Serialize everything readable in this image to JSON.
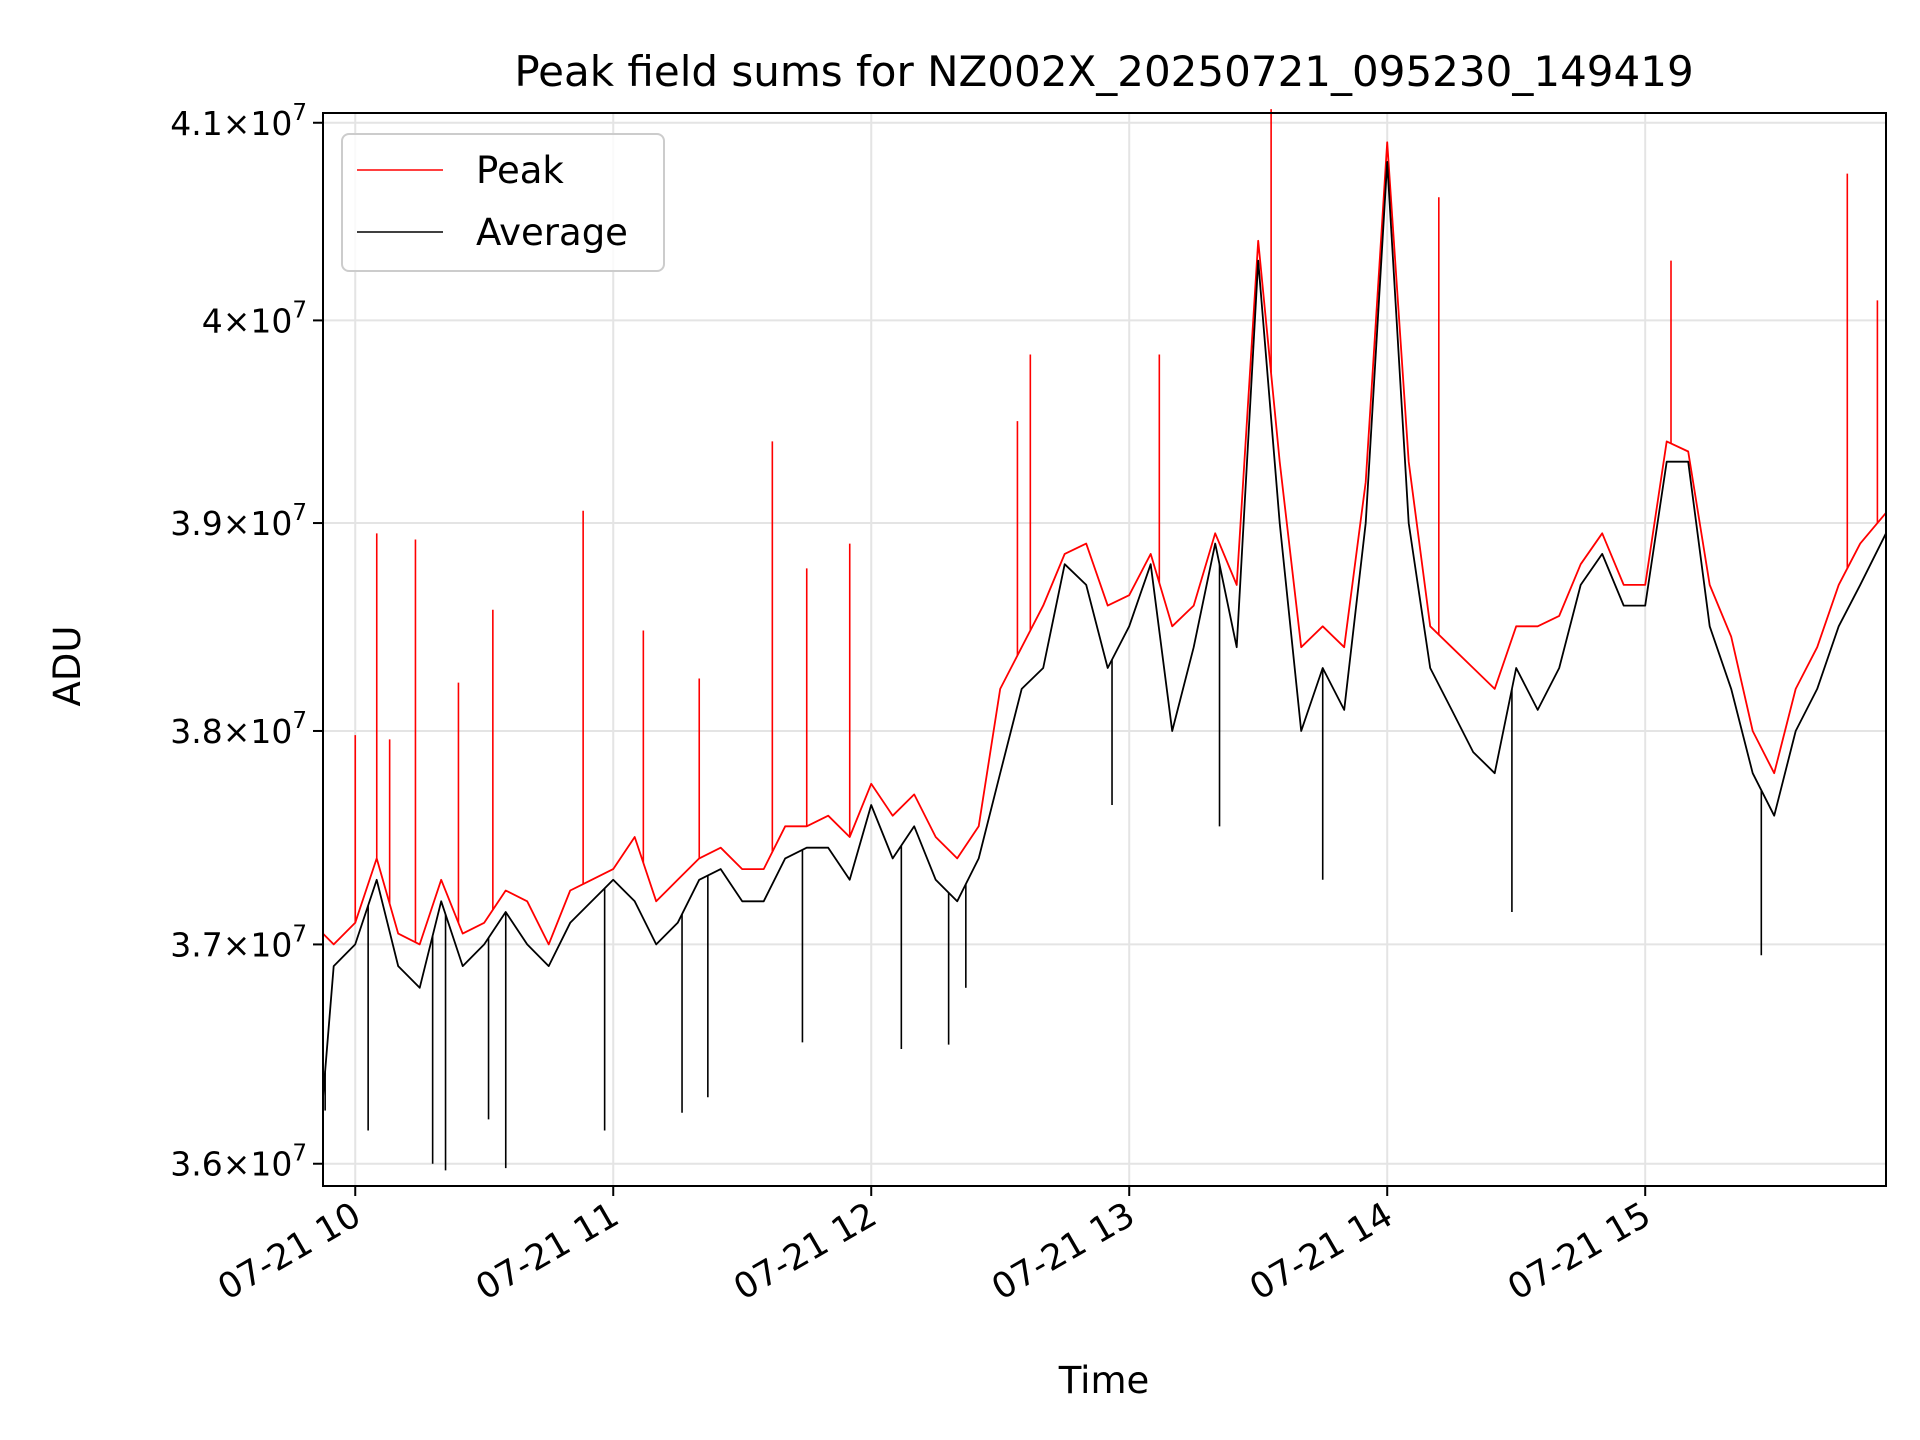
{
  "chart_data": {
    "type": "line",
    "title": "Peak field sums for NZ002X_20250721_095230_149419",
    "xlabel": "Time",
    "ylabel": "ADU",
    "y_scale": "log",
    "xlim": [
      "2025-07-21T09:52:30",
      "2025-07-21T15:56:00"
    ],
    "ylim": [
      35900000,
      41050000
    ],
    "grid": true,
    "legend_position": "top-left",
    "x_ticks": [
      {
        "value": "2025-07-21T10:00:00",
        "label": "07-21 10"
      },
      {
        "value": "2025-07-21T11:00:00",
        "label": "07-21 11"
      },
      {
        "value": "2025-07-21T12:00:00",
        "label": "07-21 12"
      },
      {
        "value": "2025-07-21T13:00:00",
        "label": "07-21 13"
      },
      {
        "value": "2025-07-21T14:00:00",
        "label": "07-21 14"
      },
      {
        "value": "2025-07-21T15:00:00",
        "label": "07-21 15"
      }
    ],
    "y_ticks": [
      {
        "value": 36000000,
        "mantissa": "3.6",
        "exponent": "7"
      },
      {
        "value": 37000000,
        "mantissa": "3.7",
        "exponent": "7"
      },
      {
        "value": 38000000,
        "mantissa": "3.8",
        "exponent": "7"
      },
      {
        "value": 39000000,
        "mantissa": "3.9",
        "exponent": "7"
      },
      {
        "value": 40000000,
        "mantissa": "4",
        "exponent": "7"
      },
      {
        "value": 41000000,
        "mantissa": "4.1",
        "exponent": "7"
      }
    ],
    "times_x_label": "×10",
    "series": [
      {
        "name": "Peak",
        "color": "#ff0000",
        "x": [
          "2025-07-21T09:52:30",
          "2025-07-21T09:55:00",
          "2025-07-21T10:00:00",
          "2025-07-21T10:05:00",
          "2025-07-21T10:10:00",
          "2025-07-21T10:15:00",
          "2025-07-21T10:20:00",
          "2025-07-21T10:25:00",
          "2025-07-21T10:30:00",
          "2025-07-21T10:35:00",
          "2025-07-21T10:40:00",
          "2025-07-21T10:45:00",
          "2025-07-21T10:50:00",
          "2025-07-21T10:55:00",
          "2025-07-21T11:00:00",
          "2025-07-21T11:05:00",
          "2025-07-21T11:10:00",
          "2025-07-21T11:15:00",
          "2025-07-21T11:20:00",
          "2025-07-21T11:25:00",
          "2025-07-21T11:30:00",
          "2025-07-21T11:35:00",
          "2025-07-21T11:40:00",
          "2025-07-21T11:45:00",
          "2025-07-21T11:50:00",
          "2025-07-21T11:55:00",
          "2025-07-21T12:00:00",
          "2025-07-21T12:05:00",
          "2025-07-21T12:10:00",
          "2025-07-21T12:15:00",
          "2025-07-21T12:20:00",
          "2025-07-21T12:25:00",
          "2025-07-21T12:30:00",
          "2025-07-21T12:35:00",
          "2025-07-21T12:40:00",
          "2025-07-21T12:45:00",
          "2025-07-21T12:50:00",
          "2025-07-21T12:55:00",
          "2025-07-21T13:00:00",
          "2025-07-21T13:05:00",
          "2025-07-21T13:10:00",
          "2025-07-21T13:15:00",
          "2025-07-21T13:20:00",
          "2025-07-21T13:25:00",
          "2025-07-21T13:30:00",
          "2025-07-21T13:35:00",
          "2025-07-21T13:40:00",
          "2025-07-21T13:45:00",
          "2025-07-21T13:50:00",
          "2025-07-21T13:55:00",
          "2025-07-21T14:00:00",
          "2025-07-21T14:05:00",
          "2025-07-21T14:10:00",
          "2025-07-21T14:15:00",
          "2025-07-21T14:20:00",
          "2025-07-21T14:25:00",
          "2025-07-21T14:30:00",
          "2025-07-21T14:35:00",
          "2025-07-21T14:40:00",
          "2025-07-21T14:45:00",
          "2025-07-21T14:50:00",
          "2025-07-21T14:55:00",
          "2025-07-21T15:00:00",
          "2025-07-21T15:05:00",
          "2025-07-21T15:10:00",
          "2025-07-21T15:15:00",
          "2025-07-21T15:20:00",
          "2025-07-21T15:25:00",
          "2025-07-21T15:30:00",
          "2025-07-21T15:35:00",
          "2025-07-21T15:40:00",
          "2025-07-21T15:45:00",
          "2025-07-21T15:50:00",
          "2025-07-21T15:56:00"
        ],
        "values": [
          37050000,
          37000000,
          37100000,
          37400000,
          37050000,
          37000000,
          37300000,
          37050000,
          37100000,
          37250000,
          37200000,
          37000000,
          37250000,
          37300000,
          37350000,
          37500000,
          37200000,
          37300000,
          37400000,
          37450000,
          37350000,
          37350000,
          37550000,
          37550000,
          37600000,
          37500000,
          37750000,
          37600000,
          37700000,
          37500000,
          37400000,
          37550000,
          38200000,
          38400000,
          38600000,
          38850000,
          38900000,
          38600000,
          38650000,
          38850000,
          38500000,
          38600000,
          38950000,
          38700000,
          40400000,
          39300000,
          38400000,
          38500000,
          38400000,
          39200000,
          40900000,
          39300000,
          38500000,
          38400000,
          38300000,
          38200000,
          38500000,
          38500000,
          38550000,
          38800000,
          38950000,
          38700000,
          38700000,
          39400000,
          39350000,
          38700000,
          38450000,
          38000000,
          37800000,
          38200000,
          38400000,
          38700000,
          38900000,
          39050000
        ],
        "spikes": [
          {
            "x": "2025-07-21T10:00:00",
            "value": 37980000
          },
          {
            "x": "2025-07-21T10:05:00",
            "value": 38950000
          },
          {
            "x": "2025-07-21T10:08:00",
            "value": 37960000
          },
          {
            "x": "2025-07-21T10:14:00",
            "value": 38920000
          },
          {
            "x": "2025-07-21T10:24:00",
            "value": 38230000
          },
          {
            "x": "2025-07-21T10:32:00",
            "value": 38580000
          },
          {
            "x": "2025-07-21T10:53:00",
            "value": 39060000
          },
          {
            "x": "2025-07-21T11:07:00",
            "value": 38480000
          },
          {
            "x": "2025-07-21T11:20:00",
            "value": 38250000
          },
          {
            "x": "2025-07-21T11:37:00",
            "value": 39400000
          },
          {
            "x": "2025-07-21T11:45:00",
            "value": 38780000
          },
          {
            "x": "2025-07-21T11:55:00",
            "value": 38900000
          },
          {
            "x": "2025-07-21T12:34:00",
            "value": 39500000
          },
          {
            "x": "2025-07-21T12:37:00",
            "value": 39830000
          },
          {
            "x": "2025-07-21T13:07:00",
            "value": 39830000
          },
          {
            "x": "2025-07-21T13:33:00",
            "value": 41070000
          },
          {
            "x": "2025-07-21T14:12:00",
            "value": 40620000
          },
          {
            "x": "2025-07-21T15:06:00",
            "value": 40300000
          },
          {
            "x": "2025-07-21T15:47:00",
            "value": 40740000
          },
          {
            "x": "2025-07-21T15:54:00",
            "value": 40100000
          }
        ]
      },
      {
        "name": "Average",
        "color": "#000000",
        "x": [
          "2025-07-21T09:52:30",
          "2025-07-21T09:55:00",
          "2025-07-21T10:00:00",
          "2025-07-21T10:05:00",
          "2025-07-21T10:10:00",
          "2025-07-21T10:15:00",
          "2025-07-21T10:20:00",
          "2025-07-21T10:25:00",
          "2025-07-21T10:30:00",
          "2025-07-21T10:35:00",
          "2025-07-21T10:40:00",
          "2025-07-21T10:45:00",
          "2025-07-21T10:50:00",
          "2025-07-21T10:55:00",
          "2025-07-21T11:00:00",
          "2025-07-21T11:05:00",
          "2025-07-21T11:10:00",
          "2025-07-21T11:15:00",
          "2025-07-21T11:20:00",
          "2025-07-21T11:25:00",
          "2025-07-21T11:30:00",
          "2025-07-21T11:35:00",
          "2025-07-21T11:40:00",
          "2025-07-21T11:45:00",
          "2025-07-21T11:50:00",
          "2025-07-21T11:55:00",
          "2025-07-21T12:00:00",
          "2025-07-21T12:05:00",
          "2025-07-21T12:10:00",
          "2025-07-21T12:15:00",
          "2025-07-21T12:20:00",
          "2025-07-21T12:25:00",
          "2025-07-21T12:30:00",
          "2025-07-21T12:35:00",
          "2025-07-21T12:40:00",
          "2025-07-21T12:45:00",
          "2025-07-21T12:50:00",
          "2025-07-21T12:55:00",
          "2025-07-21T13:00:00",
          "2025-07-21T13:05:00",
          "2025-07-21T13:10:00",
          "2025-07-21T13:15:00",
          "2025-07-21T13:20:00",
          "2025-07-21T13:25:00",
          "2025-07-21T13:30:00",
          "2025-07-21T13:35:00",
          "2025-07-21T13:40:00",
          "2025-07-21T13:45:00",
          "2025-07-21T13:50:00",
          "2025-07-21T13:55:00",
          "2025-07-21T14:00:00",
          "2025-07-21T14:05:00",
          "2025-07-21T14:10:00",
          "2025-07-21T14:15:00",
          "2025-07-21T14:20:00",
          "2025-07-21T14:25:00",
          "2025-07-21T14:30:00",
          "2025-07-21T14:35:00",
          "2025-07-21T14:40:00",
          "2025-07-21T14:45:00",
          "2025-07-21T14:50:00",
          "2025-07-21T14:55:00",
          "2025-07-21T15:00:00",
          "2025-07-21T15:05:00",
          "2025-07-21T15:10:00",
          "2025-07-21T15:15:00",
          "2025-07-21T15:20:00",
          "2025-07-21T15:25:00",
          "2025-07-21T15:30:00",
          "2025-07-21T15:35:00",
          "2025-07-21T15:40:00",
          "2025-07-21T15:45:00",
          "2025-07-21T15:50:00",
          "2025-07-21T15:56:00"
        ],
        "values": [
          36300000,
          36900000,
          37000000,
          37300000,
          36900000,
          36800000,
          37200000,
          36900000,
          37000000,
          37150000,
          37000000,
          36900000,
          37100000,
          37200000,
          37300000,
          37200000,
          37000000,
          37100000,
          37300000,
          37350000,
          37200000,
          37200000,
          37400000,
          37450000,
          37450000,
          37300000,
          37650000,
          37400000,
          37550000,
          37300000,
          37200000,
          37400000,
          37800000,
          38200000,
          38300000,
          38800000,
          38700000,
          38300000,
          38500000,
          38800000,
          38000000,
          38400000,
          38900000,
          38400000,
          40300000,
          39000000,
          38000000,
          38300000,
          38100000,
          39000000,
          40800000,
          39000000,
          38300000,
          38100000,
          37900000,
          37800000,
          38300000,
          38100000,
          38300000,
          38700000,
          38850000,
          38600000,
          38600000,
          39300000,
          39300000,
          38500000,
          38200000,
          37800000,
          37600000,
          38000000,
          38200000,
          38500000,
          38700000,
          38950000
        ],
        "dips": [
          {
            "x": "2025-07-21T09:53:00",
            "value": 36240000
          },
          {
            "x": "2025-07-21T10:03:00",
            "value": 36150000
          },
          {
            "x": "2025-07-21T10:18:00",
            "value": 36000000
          },
          {
            "x": "2025-07-21T10:21:00",
            "value": 35970000
          },
          {
            "x": "2025-07-21T10:31:00",
            "value": 36200000
          },
          {
            "x": "2025-07-21T10:35:00",
            "value": 35980000
          },
          {
            "x": "2025-07-21T10:58:00",
            "value": 36150000
          },
          {
            "x": "2025-07-21T11:16:00",
            "value": 36230000
          },
          {
            "x": "2025-07-21T11:22:00",
            "value": 36300000
          },
          {
            "x": "2025-07-21T11:44:00",
            "value": 36550000
          },
          {
            "x": "2025-07-21T12:07:00",
            "value": 36520000
          },
          {
            "x": "2025-07-21T12:18:00",
            "value": 36540000
          },
          {
            "x": "2025-07-21T12:22:00",
            "value": 36800000
          },
          {
            "x": "2025-07-21T12:56:00",
            "value": 37650000
          },
          {
            "x": "2025-07-21T13:21:00",
            "value": 37550000
          },
          {
            "x": "2025-07-21T13:45:00",
            "value": 37300000
          },
          {
            "x": "2025-07-21T14:29:00",
            "value": 37150000
          },
          {
            "x": "2025-07-21T15:27:00",
            "value": 36950000
          }
        ]
      }
    ]
  }
}
